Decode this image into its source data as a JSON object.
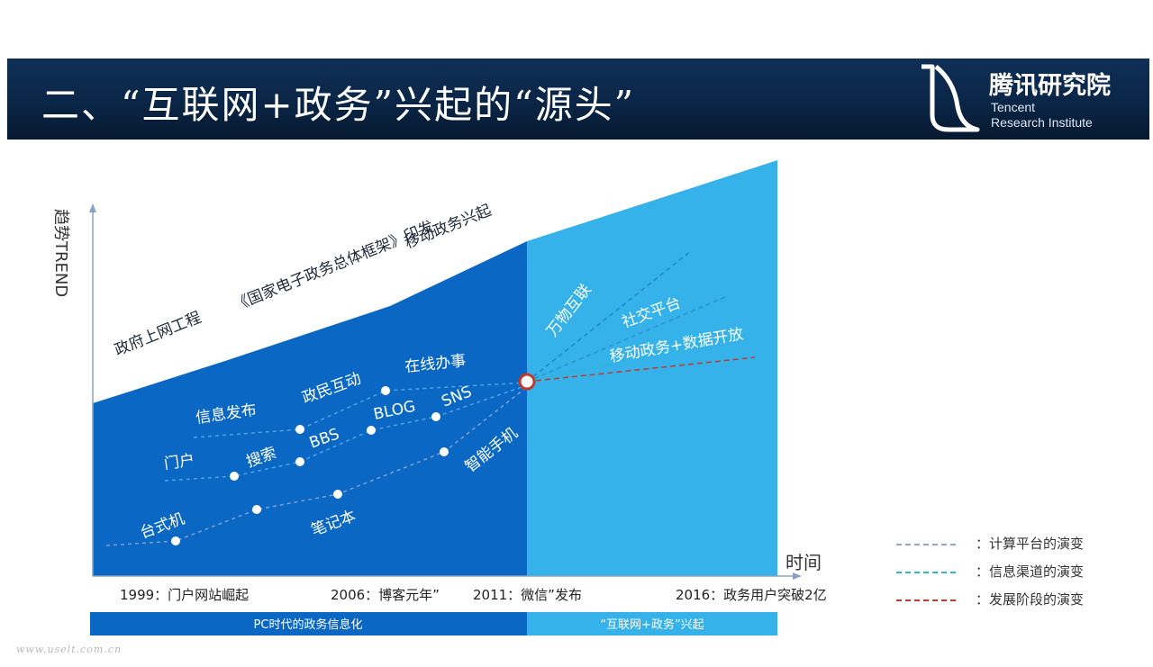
{
  "header": {
    "title": "二、“互联网+政务”兴起的“源头”",
    "logo_cn": "腾讯研究院",
    "logo_en_line1": "Tencent",
    "logo_en_line2": "Research Institute"
  },
  "colors": {
    "banner": "#0c2a4d",
    "pc_era": "#0a67c4",
    "mobile_era": "#35b2ea",
    "computing_line": "#8fa6c6",
    "channel_line": "#2fb6c8",
    "stage_line": "#c0392b"
  },
  "axes": {
    "y_label": "趋势TREND",
    "x_label": "时间"
  },
  "stages": {
    "s1": "政府上网工程",
    "s2": "《国家电子政务总体框架》印发",
    "s3": "移动政务兴起",
    "s4": "万物互联",
    "s5": "社交平台",
    "s6": "移动政务+数据开放"
  },
  "channels": {
    "c1": "门户",
    "c2": "信息发布",
    "c3": "搜索",
    "c4": "政民互动",
    "c5": "BBS",
    "c6": "BLOG",
    "c7": "在线办事",
    "c8": "SNS"
  },
  "devices": {
    "d1": "台式机",
    "d2": "笔记本",
    "d3": "智能手机"
  },
  "timeline": {
    "t1": "1999：门户网站崛起",
    "t2": "2006：博客元年”",
    "t3": "2011：微信”发布",
    "t4": "2016：政务用户突破2亿"
  },
  "eras": {
    "pc": "PC时代的政务信息化",
    "mobile": "“互联网+政务”兴起"
  },
  "legend": [
    {
      "label": "：计算平台的演变",
      "color": "#8fa6c6"
    },
    {
      "label": "：信息渠道的演变",
      "color": "#2fb6c8"
    },
    {
      "label": "：发展阶段的演变",
      "color": "#c0392b"
    }
  ],
  "watermark": "www.uselt.com.cn"
}
